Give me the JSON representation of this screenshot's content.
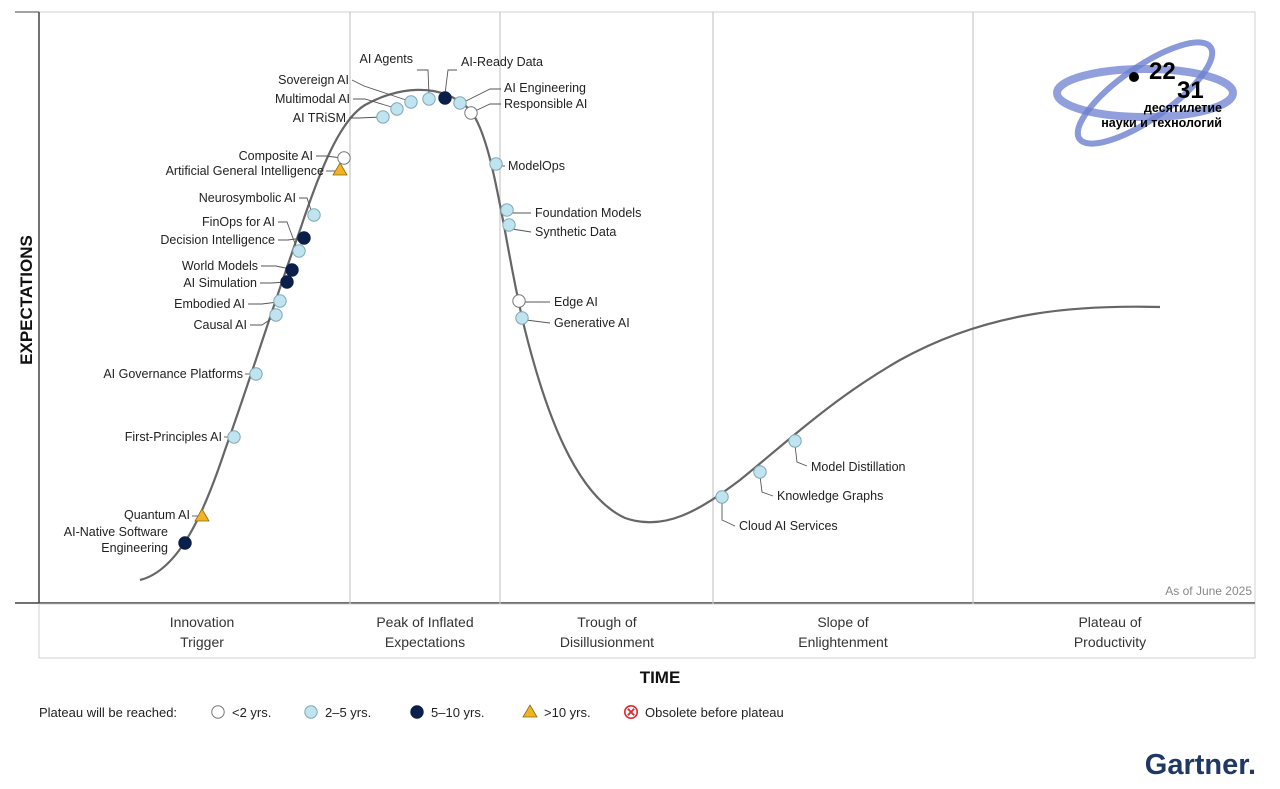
{
  "chart_data": {
    "type": "scatter",
    "y_axis_title": "EXPECTATIONS",
    "x_axis_title": "TIME",
    "as_of": "As of June 2025",
    "phases": [
      [
        "Innovation",
        "Trigger"
      ],
      [
        "Peak of Inflated",
        "Expectations"
      ],
      [
        "Trough of",
        "Disillusionment"
      ],
      [
        "Slope of",
        "Enlightenment"
      ],
      [
        "Plateau of",
        "Productivity"
      ]
    ],
    "legend": {
      "title": "Plateau will be reached:",
      "items": [
        {
          "key": "lt2",
          "label": "<2 yrs."
        },
        {
          "key": "2to5",
          "label": "2–5 yrs."
        },
        {
          "key": "5to10",
          "label": "5–10 yrs."
        },
        {
          "key": "gt10",
          "label": ">10 yrs."
        },
        {
          "key": "obsolete",
          "label": "Obsolete before plateau"
        }
      ]
    },
    "colors": {
      "lt2": "#ffffff",
      "2to5": "#bfe3ef",
      "5to10": "#0b1f4b",
      "gt10": "#f0b323",
      "obsolete": "#e0252d",
      "curve": "#666666",
      "brand": "#1f3864"
    },
    "points": [
      {
        "name": "AI-Native Software Engineering",
        "lines": [
          "AI-Native Software",
          "Engineering"
        ],
        "cat": "5to10"
      },
      {
        "name": "Quantum AI",
        "lines": [
          "Quantum AI"
        ],
        "cat": "gt10"
      },
      {
        "name": "First-Principles AI",
        "lines": [
          "First-Principles AI"
        ],
        "cat": "2to5"
      },
      {
        "name": "AI Governance Platforms",
        "lines": [
          "AI Governance Platforms"
        ],
        "cat": "2to5"
      },
      {
        "name": "Causal AI",
        "lines": [
          "Causal AI"
        ],
        "cat": "2to5"
      },
      {
        "name": "Embodied AI",
        "lines": [
          "Embodied AI"
        ],
        "cat": "2to5"
      },
      {
        "name": "AI Simulation",
        "lines": [
          "AI Simulation"
        ],
        "cat": "5to10"
      },
      {
        "name": "World Models",
        "lines": [
          "World Models"
        ],
        "cat": "5to10"
      },
      {
        "name": "Decision Intelligence",
        "lines": [
          "Decision Intelligence"
        ],
        "cat": "5to10"
      },
      {
        "name": "FinOps for AI",
        "lines": [
          "FinOps for AI"
        ],
        "cat": "2to5"
      },
      {
        "name": "Neurosymbolic AI",
        "lines": [
          "Neurosymbolic AI"
        ],
        "cat": "2to5"
      },
      {
        "name": "Artificial General Intelligence",
        "lines": [
          "Artificial General Intelligence"
        ],
        "cat": "gt10"
      },
      {
        "name": "Composite AI",
        "lines": [
          "Composite AI"
        ],
        "cat": "lt2"
      },
      {
        "name": "AI TRiSM",
        "lines": [
          "AI TRiSM"
        ],
        "cat": "2to5"
      },
      {
        "name": "Multimodal AI",
        "lines": [
          "Multimodal AI"
        ],
        "cat": "2to5"
      },
      {
        "name": "Sovereign AI",
        "lines": [
          "Sovereign AI"
        ],
        "cat": "2to5"
      },
      {
        "name": "AI Agents",
        "lines": [
          "AI Agents"
        ],
        "cat": "2to5"
      },
      {
        "name": "AI-Ready Data",
        "lines": [
          "AI-Ready Data"
        ],
        "cat": "5to10"
      },
      {
        "name": "AI Engineering",
        "lines": [
          "AI Engineering"
        ],
        "cat": "2to5"
      },
      {
        "name": "Responsible AI",
        "lines": [
          "Responsible AI"
        ],
        "cat": "lt2"
      },
      {
        "name": "ModelOps",
        "lines": [
          "ModelOps"
        ],
        "cat": "2to5"
      },
      {
        "name": "Foundation Models",
        "lines": [
          "Foundation Models"
        ],
        "cat": "2to5"
      },
      {
        "name": "Synthetic Data",
        "lines": [
          "Synthetic Data"
        ],
        "cat": "2to5"
      },
      {
        "name": "Edge AI",
        "lines": [
          "Edge AI"
        ],
        "cat": "lt2"
      },
      {
        "name": "Generative AI",
        "lines": [
          "Generative AI"
        ],
        "cat": "2to5"
      },
      {
        "name": "Cloud AI Services",
        "lines": [
          "Cloud AI Services"
        ],
        "cat": "2to5"
      },
      {
        "name": "Knowledge Graphs",
        "lines": [
          "Knowledge Graphs"
        ],
        "cat": "2to5"
      },
      {
        "name": "Model Distillation",
        "lines": [
          "Model Distillation"
        ],
        "cat": "2to5"
      }
    ]
  },
  "brand": {
    "name": "Gartner."
  },
  "logo": {
    "num_top": "22",
    "num_bottom": "31",
    "line1": "десятилетие",
    "line2": "науки и технологий"
  }
}
